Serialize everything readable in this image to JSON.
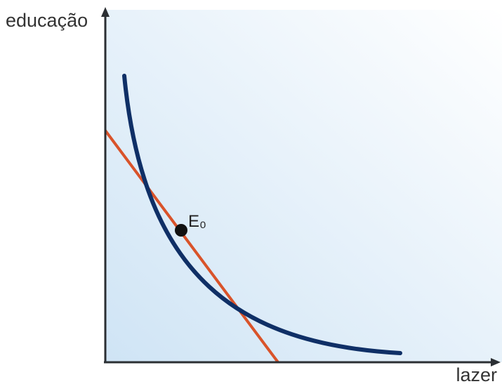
{
  "axes": {
    "y_label": "educação",
    "x_label": "lazer"
  },
  "point": {
    "label": "E₀"
  },
  "colors": {
    "background_light": "#ffffff",
    "background_tint": "#cfe4f5",
    "axis": "#2b2f33",
    "indifference_curve": "#0f2f66",
    "budget_line": "#d9532a",
    "point": "#111111"
  }
}
